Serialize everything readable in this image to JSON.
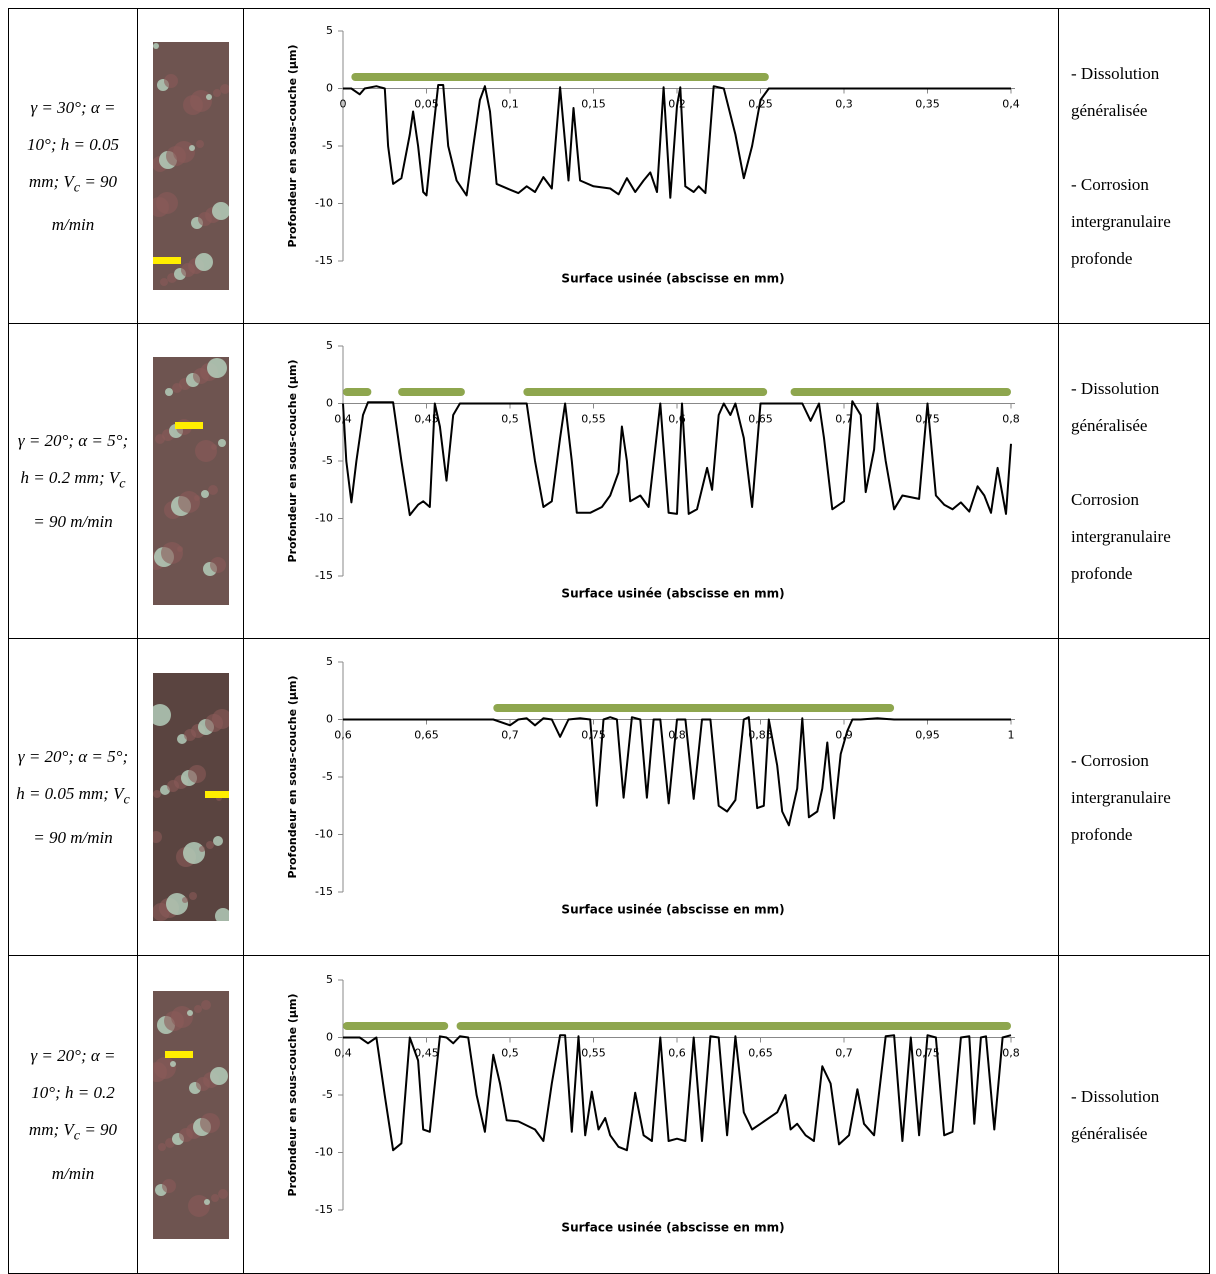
{
  "table": {
    "rows": [
      {
        "conditions": {
          "before": "γ = 30°; α = 10°; h = 0.05 mm; V",
          "sub": "c",
          "after": " = 90 m/min"
        },
        "description": [
          "- Dissolution généralisée",
          "- Corrosion intergranulaire profonde"
        ]
      },
      {
        "conditions": {
          "before": "γ = 20°; α = 5°; h = 0.2 mm; V",
          "sub": "c",
          "after": " = 90 m/min"
        },
        "description": [
          "- Dissolution généralisée",
          "Corrosion intergranulaire profonde"
        ]
      },
      {
        "conditions": {
          "before": "γ = 20°; α = 5°; h = 0.05 mm; V",
          "sub": "c",
          "after": " = 90 m/min"
        },
        "description": [
          "- Corrosion intergranulaire profonde"
        ]
      },
      {
        "conditions": {
          "before": "γ = 20°; α = 10°; h = 0.2 mm; V",
          "sub": "c",
          "after": " = 90 m/min"
        },
        "description": [
          "- Dissolution généralisée"
        ]
      }
    ]
  },
  "chart_data": [
    {
      "type": "line",
      "color": "#000000",
      "x_label": "Surface usinée (abscisse en mm)",
      "y_label": "Profondeur en sous-couche (µm)",
      "xlim": [
        0,
        0.4
      ],
      "ylim": [
        -15,
        5
      ],
      "xticks": [
        0,
        {
          "value": 0.05,
          "label": "0,05"
        },
        {
          "value": 0.1,
          "label": "0,1"
        },
        {
          "value": 0.15,
          "label": "0,15"
        },
        {
          "value": 0.2,
          "label": "0,2"
        },
        {
          "value": 0.25,
          "label": "0,25"
        },
        {
          "value": 0.3,
          "label": "0,3"
        },
        {
          "value": 0.35,
          "label": "0,35"
        },
        {
          "value": 0.4,
          "label": "0,4"
        }
      ],
      "yticks": [
        5,
        0,
        -5,
        -10,
        -15
      ],
      "bar_color": "#8ea64e",
      "bar_level": 1,
      "bars": [
        {
          "start": 0.005,
          "end": 0.255
        }
      ],
      "x": [
        0,
        0.005,
        0.01,
        0.013,
        0.02,
        0.025,
        0.027,
        0.03,
        0.035,
        0.04,
        0.042,
        0.045,
        0.048,
        0.05,
        0.053,
        0.057,
        0.06,
        0.063,
        0.068,
        0.074,
        0.078,
        0.082,
        0.085,
        0.088,
        0.092,
        0.1,
        0.105,
        0.11,
        0.115,
        0.12,
        0.125,
        0.13,
        0.135,
        0.138,
        0.142,
        0.15,
        0.16,
        0.165,
        0.17,
        0.175,
        0.18,
        0.184,
        0.188,
        0.192,
        0.196,
        0.2,
        0.202,
        0.205,
        0.21,
        0.213,
        0.217,
        0.222,
        0.228,
        0.235,
        0.24,
        0.245,
        0.25,
        0.255,
        0.26,
        0.4
      ],
      "values": [
        0,
        0,
        -0.5,
        0,
        0.2,
        0,
        -5,
        -8.3,
        -7.8,
        -4,
        -2,
        -5,
        -9,
        -9.3,
        -5,
        0.3,
        0.3,
        -5,
        -8,
        -9.3,
        -5,
        -1,
        0.2,
        -2,
        -8.3,
        -8.8,
        -9.1,
        -8.5,
        -9,
        -7.7,
        -8.7,
        0.1,
        -8,
        -1.7,
        -8,
        -8.5,
        -8.7,
        -9.2,
        -7.8,
        -9,
        -8,
        -7.3,
        -9,
        0.1,
        -9.5,
        -1.5,
        0.1,
        -8.5,
        -9,
        -8.5,
        -9.1,
        0.2,
        0,
        -4,
        -7.8,
        -5,
        -1,
        0,
        0,
        0
      ]
    },
    {
      "type": "line",
      "color": "#000000",
      "x_label": "Surface usinée (abscisse en mm)",
      "y_label": "Profondeur en sous-couche (µm)",
      "xlim": [
        0.4,
        0.8
      ],
      "ylim": [
        -15,
        5
      ],
      "xticks": [
        {
          "value": 0.4,
          "label": "0,4"
        },
        {
          "value": 0.45,
          "label": "0,45"
        },
        {
          "value": 0.5,
          "label": "0,5"
        },
        {
          "value": 0.55,
          "label": "0,55"
        },
        {
          "value": 0.6,
          "label": "0,6"
        },
        {
          "value": 0.65,
          "label": "0,65"
        },
        {
          "value": 0.7,
          "label": "0,7"
        },
        {
          "value": 0.75,
          "label": "0,75"
        },
        {
          "value": 0.8,
          "label": "0,8"
        }
      ],
      "yticks": [
        5,
        0,
        -5,
        -10,
        -15
      ],
      "bar_color": "#8ea64e",
      "bar_level": 1,
      "bars": [
        {
          "start": 0.4,
          "end": 0.417
        },
        {
          "start": 0.433,
          "end": 0.473
        },
        {
          "start": 0.508,
          "end": 0.654
        },
        {
          "start": 0.668,
          "end": 0.8
        }
      ],
      "x": [
        0.4,
        0.402,
        0.405,
        0.408,
        0.412,
        0.415,
        0.43,
        0.435,
        0.44,
        0.445,
        0.448,
        0.452,
        0.455,
        0.458,
        0.462,
        0.466,
        0.47,
        0.5,
        0.51,
        0.515,
        0.52,
        0.525,
        0.53,
        0.533,
        0.537,
        0.54,
        0.548,
        0.555,
        0.56,
        0.565,
        0.567,
        0.57,
        0.572,
        0.578,
        0.583,
        0.59,
        0.595,
        0.6,
        0.603,
        0.607,
        0.612,
        0.618,
        0.621,
        0.625,
        0.628,
        0.632,
        0.635,
        0.64,
        0.645,
        0.65,
        0.655,
        0.675,
        0.68,
        0.685,
        0.688,
        0.693,
        0.7,
        0.705,
        0.71,
        0.713,
        0.718,
        0.72,
        0.725,
        0.73,
        0.735,
        0.745,
        0.75,
        0.755,
        0.76,
        0.765,
        0.77,
        0.775,
        0.78,
        0.784,
        0.788,
        0.792,
        0.797,
        0.8
      ],
      "values": [
        0,
        -5,
        -8.6,
        -5,
        -1,
        0.1,
        0.1,
        -5,
        -9.7,
        -8.8,
        -8.5,
        -9,
        0,
        -2,
        -6.7,
        -1,
        0,
        0,
        0,
        -5,
        -9,
        -8.5,
        -3,
        0,
        -5,
        -9.5,
        -9.5,
        -9,
        -8,
        -6,
        -2,
        -5,
        -8.5,
        -8,
        -9,
        0,
        -9.5,
        -9.6,
        0,
        -9.6,
        -9.2,
        -5.6,
        -7.5,
        -1,
        0,
        -1,
        0,
        -3,
        -9,
        0,
        0,
        0,
        -1.5,
        0,
        -3,
        -9.2,
        -8.5,
        0.2,
        -1,
        -7.7,
        -4,
        0,
        -5,
        -9.2,
        -8,
        -8.3,
        0,
        -8,
        -8.8,
        -9.2,
        -8.6,
        -9.4,
        -7.2,
        -8,
        -9.5,
        -5.6,
        -9.6,
        -3.5
      ]
    },
    {
      "type": "line",
      "color": "#000000",
      "x_label": "Surface usinée (abscisse en mm)",
      "y_label": "Profondeur en sous-couche (µm)",
      "xlim": [
        0.6,
        1
      ],
      "ylim": [
        -15,
        5
      ],
      "xticks": [
        {
          "value": 0.6,
          "label": "0,6"
        },
        {
          "value": 0.65,
          "label": "0,65"
        },
        {
          "value": 0.7,
          "label": "0,7"
        },
        {
          "value": 0.75,
          "label": "0,75"
        },
        {
          "value": 0.8,
          "label": "0,8"
        },
        {
          "value": 0.85,
          "label": "0,85"
        },
        {
          "value": 0.9,
          "label": "0,9"
        },
        {
          "value": 0.95,
          "label": "0,95"
        },
        1
      ],
      "yticks": [
        5,
        0,
        -5,
        -10,
        -15
      ],
      "bar_color": "#8ea64e",
      "bar_level": 1,
      "bars": [
        {
          "start": 0.69,
          "end": 0.93
        }
      ],
      "x": [
        0.6,
        0.69,
        0.7,
        0.705,
        0.71,
        0.715,
        0.72,
        0.725,
        0.73,
        0.735,
        0.742,
        0.748,
        0.752,
        0.756,
        0.76,
        0.764,
        0.768,
        0.773,
        0.778,
        0.782,
        0.786,
        0.79,
        0.795,
        0.8,
        0.805,
        0.81,
        0.815,
        0.82,
        0.825,
        0.83,
        0.835,
        0.84,
        0.843,
        0.848,
        0.852,
        0.855,
        0.86,
        0.863,
        0.867,
        0.872,
        0.875,
        0.879,
        0.884,
        0.887,
        0.89,
        0.894,
        0.898,
        0.902,
        0.905,
        0.91,
        0.92,
        0.93,
        1
      ],
      "values": [
        0,
        0,
        -0.5,
        0,
        0.1,
        -0.5,
        0.1,
        0,
        -1.5,
        0,
        0.1,
        0,
        -7.5,
        0,
        0.2,
        0,
        -6.8,
        0.2,
        0,
        -6.8,
        0,
        0,
        -7.3,
        0,
        0,
        -6.9,
        0,
        0,
        -7.5,
        -8,
        -7,
        0,
        0.2,
        -7.7,
        -7.5,
        0,
        -4,
        -8,
        -9.2,
        -6,
        0.1,
        -8.5,
        -8,
        -6,
        -2,
        -8.6,
        -3,
        -1,
        0,
        0,
        0.1,
        0,
        0
      ]
    },
    {
      "type": "line",
      "color": "#000000",
      "x_label": "Surface usinée (abscisse en mm)",
      "y_label": "Profondeur en sous-couche (µm)",
      "xlim": [
        0.4,
        0.8
      ],
      "ylim": [
        -15,
        5
      ],
      "xticks": [
        {
          "value": 0.4,
          "label": "0,4"
        },
        {
          "value": 0.45,
          "label": "0,45"
        },
        {
          "value": 0.5,
          "label": "0,5"
        },
        {
          "value": 0.55,
          "label": "0,55"
        },
        {
          "value": 0.6,
          "label": "0,6"
        },
        {
          "value": 0.65,
          "label": "0,65"
        },
        {
          "value": 0.7,
          "label": "0,7"
        },
        {
          "value": 0.75,
          "label": "0,75"
        },
        {
          "value": 0.8,
          "label": "0,8"
        }
      ],
      "yticks": [
        5,
        0,
        -5,
        -10,
        -15
      ],
      "bar_color": "#8ea64e",
      "bar_level": 1,
      "bars": [
        {
          "start": 0.4,
          "end": 0.463
        },
        {
          "start": 0.468,
          "end": 0.8
        }
      ],
      "x": [
        0.4,
        0.41,
        0.415,
        0.42,
        0.425,
        0.43,
        0.435,
        0.44,
        0.445,
        0.448,
        0.452,
        0.458,
        0.462,
        0.466,
        0.47,
        0.475,
        0.48,
        0.485,
        0.49,
        0.494,
        0.498,
        0.505,
        0.515,
        0.52,
        0.525,
        0.53,
        0.533,
        0.537,
        0.541,
        0.545,
        0.549,
        0.553,
        0.557,
        0.56,
        0.565,
        0.57,
        0.575,
        0.58,
        0.585,
        0.59,
        0.595,
        0.6,
        0.605,
        0.61,
        0.615,
        0.62,
        0.625,
        0.63,
        0.635,
        0.64,
        0.645,
        0.65,
        0.66,
        0.665,
        0.668,
        0.672,
        0.677,
        0.682,
        0.687,
        0.692,
        0.697,
        0.703,
        0.708,
        0.712,
        0.718,
        0.725,
        0.73,
        0.735,
        0.74,
        0.745,
        0.75,
        0.755,
        0.76,
        0.765,
        0.77,
        0.775,
        0.778,
        0.782,
        0.785,
        0.79,
        0.795,
        0.8
      ],
      "values": [
        0,
        0,
        -0.5,
        0,
        -5,
        -9.8,
        -9.2,
        0,
        -2,
        -8,
        -8.2,
        0.1,
        0,
        -0.5,
        0.1,
        0,
        -5,
        -8.2,
        -1.5,
        -4,
        -7.2,
        -7.3,
        -8,
        -9,
        -4,
        0.2,
        0.2,
        -8.2,
        0.1,
        -8.5,
        -4.7,
        -8,
        -7,
        -8.5,
        -9.5,
        -9.8,
        -4.8,
        -8.5,
        -9,
        0,
        -9,
        -8.8,
        -9,
        0,
        -9,
        0.1,
        0,
        -8.5,
        0.1,
        -6.5,
        -8,
        -7.5,
        -6.5,
        -5,
        -8,
        -7.5,
        -8.5,
        -9,
        -2.5,
        -4,
        -9.3,
        -8.5,
        -4.5,
        -7.5,
        -8.5,
        0.1,
        0.2,
        -9,
        0,
        -8.5,
        0.2,
        0,
        -8.5,
        -8.2,
        0,
        0.1,
        -7.5,
        0,
        0.1,
        -8,
        0,
        0.2
      ]
    }
  ]
}
